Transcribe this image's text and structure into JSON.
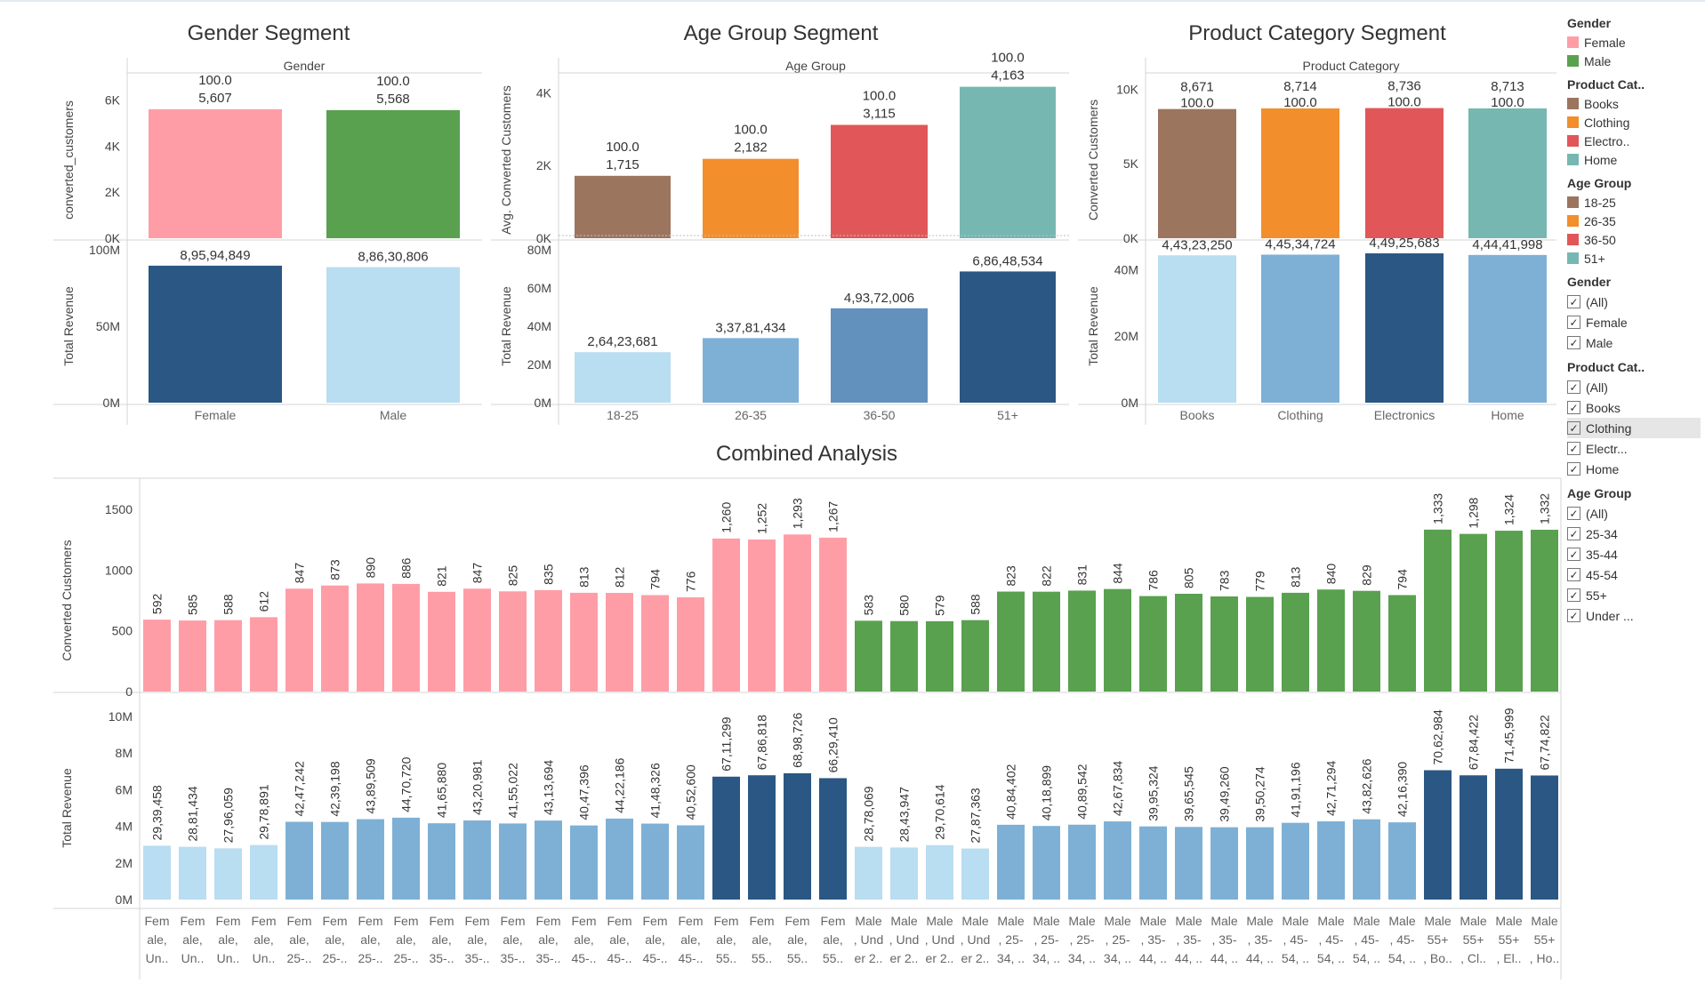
{
  "colors": {
    "female": "#ff9da7",
    "male": "#59a14f",
    "books": "#9c755f",
    "clothing": "#f28e2b",
    "electronics": "#e15759",
    "home": "#76b7b2",
    "age_18_25": "#9c755f",
    "age_26_35": "#f28e2b",
    "age_36_50": "#e15759",
    "age_51": "#76b7b2",
    "rev_light": "#b9ddf1",
    "rev_mid": "#7eb0d5",
    "rev_steel": "#6391bd",
    "rev_dark": "#2a5783"
  },
  "legend": {
    "gender_title": "Gender",
    "gender_items": [
      "Female",
      "Male"
    ],
    "product_title": "Product Cat..",
    "product_items": [
      "Books",
      "Clothing",
      "Electro..",
      "Home"
    ],
    "age_title": "Age Group",
    "age_items": [
      "18-25",
      "26-35",
      "36-50",
      "51+"
    ]
  },
  "filters": {
    "gender_title": "Gender",
    "gender_items": [
      "(All)",
      "Female",
      "Male"
    ],
    "product_title": "Product Cat..",
    "product_items": [
      "(All)",
      "Books",
      "Clothing",
      "Electr...",
      "Home"
    ],
    "product_highlight_index": 2,
    "age_title": "Age Group",
    "age_items": [
      "(All)",
      "25-34",
      "35-44",
      "45-54",
      "55+",
      "Under ..."
    ],
    "check_glyph": "✓"
  },
  "chart_data": [
    {
      "type": "bar",
      "title": "Gender Segment",
      "column_header": "Gender",
      "categories": [
        "Female",
        "Male"
      ],
      "series": [
        {
          "ylabel": "converted_customers",
          "values": [
            5607,
            5568
          ],
          "secondary_labels": [
            "100.0",
            "100.0"
          ],
          "value_labels": [
            "5,607",
            "5,568"
          ],
          "ticks": [
            "0K",
            "2K",
            "4K",
            "6K"
          ],
          "ylim": [
            0,
            6800
          ]
        },
        {
          "ylabel": "Total Revenue",
          "values": [
            89594849,
            88630806
          ],
          "value_labels": [
            "8,95,94,849",
            "8,86,30,806"
          ],
          "ticks": [
            "0M",
            "50M",
            "100M"
          ],
          "ylim": [
            0,
            100000000
          ]
        }
      ]
    },
    {
      "type": "bar",
      "title": "Age Group Segment",
      "column_header": "Age Group",
      "categories": [
        "18-25",
        "26-35",
        "36-50",
        "51+"
      ],
      "series": [
        {
          "ylabel": "Avg. Converted Customers",
          "values": [
            1715,
            2182,
            3115,
            4163
          ],
          "secondary_labels": [
            "100.0",
            "100.0",
            "100.0",
            "100.0"
          ],
          "value_labels": [
            "1,715",
            "2,182",
            "3,115",
            "4,163"
          ],
          "ticks": [
            "0K",
            "2K",
            "4K"
          ],
          "ylim": [
            0,
            4300
          ]
        },
        {
          "ylabel": "Total Revenue",
          "values": [
            26423681,
            33781434,
            49372006,
            68648534
          ],
          "value_labels": [
            "2,64,23,681",
            "3,37,81,434",
            "4,93,72,006",
            "6,86,48,534"
          ],
          "ticks": [
            "0M",
            "20M",
            "40M",
            "60M",
            "80M"
          ],
          "ylim": [
            0,
            80000000
          ]
        }
      ]
    },
    {
      "type": "bar",
      "title": "Product Category Segment",
      "column_header": "Product Category",
      "categories": [
        "Books",
        "Clothing",
        "Electronics",
        "Home"
      ],
      "series": [
        {
          "ylabel": "Converted Customers",
          "values": [
            8671,
            8714,
            8736,
            8713
          ],
          "secondary_labels": [
            "100.0",
            "100.0",
            "100.0",
            "100.0"
          ],
          "value_labels": [
            "8,671",
            "8,714",
            "8,736",
            "8,713"
          ],
          "ticks": [
            "0K",
            "5K",
            "10K"
          ],
          "ylim": [
            0,
            10500
          ]
        },
        {
          "ylabel": "Total Revenue",
          "values": [
            44323250,
            44534724,
            44925683,
            44441998
          ],
          "value_labels": [
            "4,43,23,250",
            "4,45,34,724",
            "4,49,25,683",
            "4,44,41,998"
          ],
          "ticks": [
            "0M",
            "20M",
            "40M"
          ],
          "ylim": [
            0,
            46000000
          ]
        }
      ]
    },
    {
      "type": "bar",
      "title": "Combined Analysis",
      "categories": [
        [
          "Fem",
          "ale,",
          "Un.."
        ],
        [
          "Fem",
          "ale,",
          "Un.."
        ],
        [
          "Fem",
          "ale,",
          "Un.."
        ],
        [
          "Fem",
          "ale,",
          "Un.."
        ],
        [
          "Fem",
          "ale,",
          "25-.."
        ],
        [
          "Fem",
          "ale,",
          "25-.."
        ],
        [
          "Fem",
          "ale,",
          "25-.."
        ],
        [
          "Fem",
          "ale,",
          "25-.."
        ],
        [
          "Fem",
          "ale,",
          "35-.."
        ],
        [
          "Fem",
          "ale,",
          "35-.."
        ],
        [
          "Fem",
          "ale,",
          "35-.."
        ],
        [
          "Fem",
          "ale,",
          "35-.."
        ],
        [
          "Fem",
          "ale,",
          "45-.."
        ],
        [
          "Fem",
          "ale,",
          "45-.."
        ],
        [
          "Fem",
          "ale,",
          "45-.."
        ],
        [
          "Fem",
          "ale,",
          "45-.."
        ],
        [
          "Fem",
          "ale,",
          "55.."
        ],
        [
          "Fem",
          "ale,",
          "55.."
        ],
        [
          "Fem",
          "ale,",
          "55.."
        ],
        [
          "Fem",
          "ale,",
          "55.."
        ],
        [
          "Male",
          ", Und",
          "er 2.."
        ],
        [
          "Male",
          ", Und",
          "er 2.."
        ],
        [
          "Male",
          ", Und",
          "er 2.."
        ],
        [
          "Male",
          ", Und",
          "er 2.."
        ],
        [
          "Male",
          ", 25-",
          "34, .."
        ],
        [
          "Male",
          ", 25-",
          "34, .."
        ],
        [
          "Male",
          ", 25-",
          "34, .."
        ],
        [
          "Male",
          ", 25-",
          "34, .."
        ],
        [
          "Male",
          ", 35-",
          "44, .."
        ],
        [
          "Male",
          ", 35-",
          "44, .."
        ],
        [
          "Male",
          ", 35-",
          "44, .."
        ],
        [
          "Male",
          ", 35-",
          "44, .."
        ],
        [
          "Male",
          ", 45-",
          "54, .."
        ],
        [
          "Male",
          ", 45-",
          "54, .."
        ],
        [
          "Male",
          ", 45-",
          "54, .."
        ],
        [
          "Male",
          ", 45-",
          "54, .."
        ],
        [
          "Male",
          "55+",
          ", Bo.."
        ],
        [
          "Male",
          "55+",
          ", Cl.."
        ],
        [
          "Male",
          "55+",
          ", El.."
        ],
        [
          "Male",
          "55+",
          ", Ho.."
        ]
      ],
      "series": [
        {
          "ylabel": "Converted Customers",
          "ticks": [
            "0",
            "500",
            "1000",
            "1500"
          ],
          "ylim": [
            0,
            1500
          ],
          "values": [
            592,
            585,
            588,
            612,
            847,
            873,
            890,
            886,
            821,
            847,
            825,
            835,
            813,
            812,
            794,
            776,
            1260,
            1252,
            1293,
            1267,
            583,
            580,
            579,
            588,
            823,
            822,
            831,
            844,
            786,
            805,
            783,
            779,
            813,
            840,
            829,
            794,
            1333,
            1298,
            1324,
            1332
          ],
          "value_labels": [
            "592",
            "585",
            "588",
            "612",
            "847",
            "873",
            "890",
            "886",
            "821",
            "847",
            "825",
            "835",
            "813",
            "812",
            "794",
            "776",
            "1,260",
            "1,252",
            "1,293",
            "1,267",
            "583",
            "580",
            "579",
            "588",
            "823",
            "822",
            "831",
            "844",
            "786",
            "805",
            "783",
            "779",
            "813",
            "840",
            "829",
            "794",
            "1,333",
            "1,298",
            "1,324",
            "1,332"
          ]
        },
        {
          "ylabel": "Total Revenue",
          "ticks": [
            "0M",
            "2M",
            "4M",
            "6M",
            "8M",
            "10M"
          ],
          "ylim": [
            0,
            10000000
          ],
          "values": [
            2939458,
            2881434,
            2796059,
            2978891,
            4247242,
            4239198,
            4389509,
            4470720,
            4165880,
            4320981,
            4155022,
            4313694,
            4047396,
            4422186,
            4148326,
            4052600,
            6711299,
            6786818,
            6898726,
            6629410,
            2878069,
            2843947,
            2970614,
            2787363,
            4084402,
            4018899,
            4089542,
            4267834,
            3995324,
            3965545,
            3949260,
            3950274,
            4191196,
            4271294,
            4382626,
            4216390,
            7062984,
            6784422,
            7145999,
            6774822
          ],
          "value_labels": [
            "29,39,458",
            "28,81,434",
            "27,96,059",
            "29,78,891",
            "42,47,242",
            "42,39,198",
            "43,89,509",
            "44,70,720",
            "41,65,880",
            "43,20,981",
            "41,55,022",
            "43,13,694",
            "40,47,396",
            "44,22,186",
            "41,48,326",
            "40,52,600",
            "67,11,299",
            "67,86,818",
            "68,98,726",
            "66,29,410",
            "28,78,069",
            "28,43,947",
            "29,70,614",
            "27,87,363",
            "40,84,402",
            "40,18,899",
            "40,89,542",
            "42,67,834",
            "39,95,324",
            "39,65,545",
            "39,49,260",
            "39,50,274",
            "41,91,196",
            "42,71,294",
            "43,82,626",
            "42,16,390",
            "70,62,984",
            "67,84,422",
            "71,45,999",
            "67,74,822"
          ]
        }
      ]
    }
  ]
}
